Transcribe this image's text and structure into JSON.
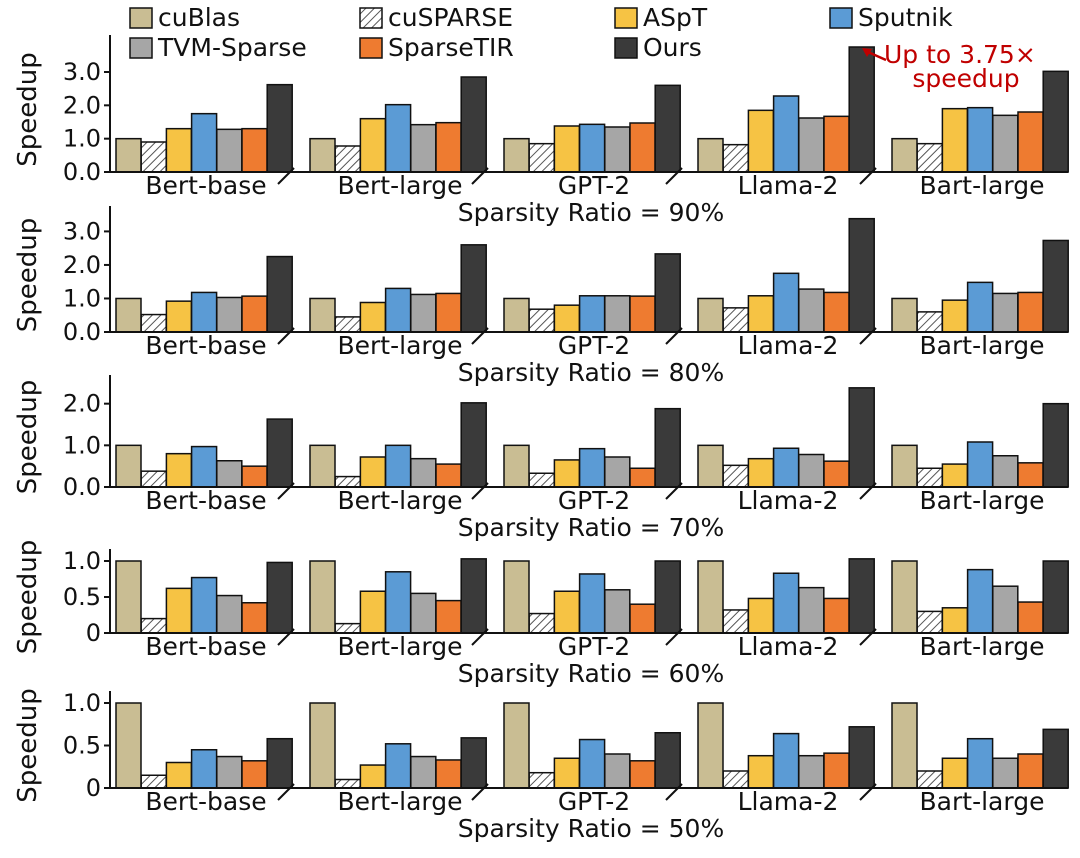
{
  "legend": [
    {
      "name": "cuBlas",
      "color": "#c9bd93",
      "pattern": "solid"
    },
    {
      "name": "cuSPARSE",
      "color": "#ffffff",
      "pattern": "hatch"
    },
    {
      "name": "ASpT",
      "color": "#f6c344",
      "pattern": "solid"
    },
    {
      "name": "Sputnik",
      "color": "#5b9bd5",
      "pattern": "solid"
    },
    {
      "name": "TVM-Sparse",
      "color": "#a6a6a6",
      "pattern": "solid"
    },
    {
      "name": "SparseTIR",
      "color": "#ee7b30",
      "pattern": "solid"
    },
    {
      "name": "Ours",
      "color": "#3a3a3a",
      "pattern": "solid"
    }
  ],
  "annotation": {
    "line1": "Up to 3.75×",
    "line2": "speedup",
    "color": "#c00000"
  },
  "chart_data": [
    {
      "type": "bar",
      "title": "Sparsity Ratio = 90%",
      "ylabel": "Speedup",
      "ylim": [
        0,
        3.75
      ],
      "yticks": [
        0,
        1,
        2,
        3
      ],
      "ytick_labels": [
        "0.0",
        "1.0",
        "2.0",
        "3.0"
      ],
      "categories": [
        "Bert-base",
        "Bert-large",
        "GPT-2",
        "Llama-2",
        "Bart-large"
      ],
      "series": [
        {
          "name": "cuBlas",
          "values": [
            1.0,
            1.0,
            1.0,
            1.0,
            1.0
          ]
        },
        {
          "name": "cuSPARSE",
          "values": [
            0.9,
            0.78,
            0.85,
            0.82,
            0.85
          ]
        },
        {
          "name": "ASpT",
          "values": [
            1.3,
            1.6,
            1.38,
            1.85,
            1.9
          ]
        },
        {
          "name": "Sputnik",
          "values": [
            1.75,
            2.02,
            1.43,
            2.28,
            1.93
          ]
        },
        {
          "name": "TVM-Sparse",
          "values": [
            1.28,
            1.42,
            1.35,
            1.62,
            1.7
          ]
        },
        {
          "name": "SparseTIR",
          "values": [
            1.3,
            1.48,
            1.47,
            1.67,
            1.8
          ]
        },
        {
          "name": "Ours",
          "values": [
            2.62,
            2.85,
            2.6,
            3.75,
            3.02
          ]
        }
      ]
    },
    {
      "type": "bar",
      "title": "Sparsity Ratio = 80%",
      "ylabel": "Speedup",
      "ylim": [
        0,
        3.4
      ],
      "yticks": [
        0,
        1,
        2,
        3
      ],
      "ytick_labels": [
        "0.0",
        "1.0",
        "2.0",
        "3.0"
      ],
      "categories": [
        "Bert-base",
        "Bert-large",
        "GPT-2",
        "Llama-2",
        "Bart-large"
      ],
      "series": [
        {
          "name": "cuBlas",
          "values": [
            1.0,
            1.0,
            1.0,
            1.0,
            1.0
          ]
        },
        {
          "name": "cuSPARSE",
          "values": [
            0.52,
            0.45,
            0.68,
            0.72,
            0.6
          ]
        },
        {
          "name": "ASpT",
          "values": [
            0.92,
            0.88,
            0.8,
            1.08,
            0.95
          ]
        },
        {
          "name": "Sputnik",
          "values": [
            1.18,
            1.3,
            1.08,
            1.75,
            1.48
          ]
        },
        {
          "name": "TVM-Sparse",
          "values": [
            1.03,
            1.12,
            1.08,
            1.28,
            1.15
          ]
        },
        {
          "name": "SparseTIR",
          "values": [
            1.07,
            1.15,
            1.07,
            1.18,
            1.18
          ]
        },
        {
          "name": "Ours",
          "values": [
            2.25,
            2.6,
            2.33,
            3.38,
            2.73
          ]
        }
      ]
    },
    {
      "type": "bar",
      "title": "Sparsity Ratio = 70%",
      "ylabel": "Speedup",
      "ylim": [
        0,
        2.4
      ],
      "yticks": [
        0,
        1,
        2
      ],
      "ytick_labels": [
        "0.0",
        "1.0",
        "2.0"
      ],
      "categories": [
        "Bert-base",
        "Bert-large",
        "GPT-2",
        "Llama-2",
        "Bart-large"
      ],
      "series": [
        {
          "name": "cuBlas",
          "values": [
            1.0,
            1.0,
            1.0,
            1.0,
            1.0
          ]
        },
        {
          "name": "cuSPARSE",
          "values": [
            0.38,
            0.25,
            0.33,
            0.52,
            0.45
          ]
        },
        {
          "name": "ASpT",
          "values": [
            0.8,
            0.72,
            0.65,
            0.68,
            0.55
          ]
        },
        {
          "name": "Sputnik",
          "values": [
            0.97,
            1.0,
            0.92,
            0.93,
            1.08
          ]
        },
        {
          "name": "TVM-Sparse",
          "values": [
            0.63,
            0.68,
            0.72,
            0.78,
            0.75
          ]
        },
        {
          "name": "SparseTIR",
          "values": [
            0.5,
            0.55,
            0.45,
            0.62,
            0.58
          ]
        },
        {
          "name": "Ours",
          "values": [
            1.63,
            2.02,
            1.88,
            2.38,
            2.0
          ]
        }
      ]
    },
    {
      "type": "bar",
      "title": "Sparsity Ratio = 60%",
      "ylabel": "Speedup",
      "ylim": [
        0,
        1.0
      ],
      "yticks": [
        0,
        0.5,
        1.0
      ],
      "ytick_labels": [
        "0",
        "0.5",
        "1.0"
      ],
      "categories": [
        "Bert-base",
        "Bert-large",
        "GPT-2",
        "Llama-2",
        "Bart-large"
      ],
      "series": [
        {
          "name": "cuBlas",
          "values": [
            1.0,
            1.0,
            1.0,
            1.0,
            1.0
          ]
        },
        {
          "name": "cuSPARSE",
          "values": [
            0.2,
            0.13,
            0.27,
            0.32,
            0.3
          ]
        },
        {
          "name": "ASpT",
          "values": [
            0.62,
            0.58,
            0.58,
            0.48,
            0.35
          ]
        },
        {
          "name": "Sputnik",
          "values": [
            0.77,
            0.85,
            0.82,
            0.83,
            0.88
          ]
        },
        {
          "name": "TVM-Sparse",
          "values": [
            0.52,
            0.55,
            0.6,
            0.63,
            0.65
          ]
        },
        {
          "name": "SparseTIR",
          "values": [
            0.42,
            0.45,
            0.4,
            0.48,
            0.43
          ]
        },
        {
          "name": "Ours",
          "values": [
            0.98,
            1.03,
            1.0,
            1.03,
            1.0
          ]
        }
      ]
    },
    {
      "type": "bar",
      "title": "Sparsity Ratio = 50%",
      "ylabel": "Speedup",
      "ylim": [
        0,
        1.0
      ],
      "yticks": [
        0,
        0.5,
        1.0
      ],
      "ytick_labels": [
        "0",
        "0.5",
        "1.0"
      ],
      "categories": [
        "Bert-base",
        "Bert-large",
        "GPT-2",
        "Llama-2",
        "Bart-large"
      ],
      "series": [
        {
          "name": "cuBlas",
          "values": [
            1.0,
            1.0,
            1.0,
            1.0,
            1.0
          ]
        },
        {
          "name": "cuSPARSE",
          "values": [
            0.15,
            0.1,
            0.18,
            0.2,
            0.2
          ]
        },
        {
          "name": "ASpT",
          "values": [
            0.3,
            0.27,
            0.35,
            0.38,
            0.35
          ]
        },
        {
          "name": "Sputnik",
          "values": [
            0.45,
            0.52,
            0.57,
            0.64,
            0.58
          ]
        },
        {
          "name": "TVM-Sparse",
          "values": [
            0.37,
            0.37,
            0.4,
            0.38,
            0.35
          ]
        },
        {
          "name": "SparseTIR",
          "values": [
            0.32,
            0.33,
            0.32,
            0.41,
            0.4
          ]
        },
        {
          "name": "Ours",
          "values": [
            0.58,
            0.59,
            0.65,
            0.72,
            0.69
          ]
        }
      ]
    }
  ]
}
